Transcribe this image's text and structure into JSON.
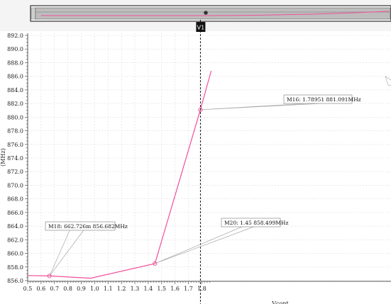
{
  "colors": {
    "series": "#f0509a",
    "grid": "#dcdcdc",
    "axis": "#555555",
    "cursor": "#000000",
    "cursor_label_bg": "#111111",
    "marker_box_border": "#999999",
    "overview_bar": "#bdbdbd",
    "overview_frame": "#333333"
  },
  "overview": {
    "icon": "wave-icon"
  },
  "chart_data": {
    "type": "line",
    "xlabel": "Vcont",
    "ylabel": "(MHz)",
    "xlim": [
      0.5,
      1.87
    ],
    "ylim": [
      855.5,
      892.0
    ],
    "x_ticks": [
      "0.5",
      "0.6",
      "0.7",
      "0.8",
      "0.9",
      "1.0",
      "1.1",
      "1.2",
      "1.3",
      "1.4",
      "1.5",
      "1.6",
      "1.7",
      "1.8"
    ],
    "y_ticks": [
      "856.0",
      "858.0",
      "860.0",
      "862.0",
      "864.0",
      "866.0",
      "868.0",
      "870.0",
      "872.0",
      "874.0",
      "876.0",
      "878.0",
      "880.0",
      "882.0",
      "884.0",
      "886.0",
      "888.0",
      "890.0",
      "892.0"
    ],
    "grid": true,
    "series": [
      {
        "x": [
          0.5,
          0.662726,
          0.97,
          1.45,
          1.78951,
          1.87
        ],
        "y": [
          856.75,
          856.682,
          856.35,
          858.499,
          881.091,
          886.8
        ]
      }
    ],
    "markers": [
      {
        "label": "M18: 662.726m 856.682MHz",
        "x": 0.662726,
        "y": 856.682
      },
      {
        "label": "M20: 1.45 858.499MHz",
        "x": 1.45,
        "y": 858.499
      },
      {
        "label": "M16: 1.78951 881.091MHz",
        "x": 1.78951,
        "y": 881.091
      }
    ],
    "cursor": {
      "label": "V1",
      "x": 1.78951
    }
  }
}
